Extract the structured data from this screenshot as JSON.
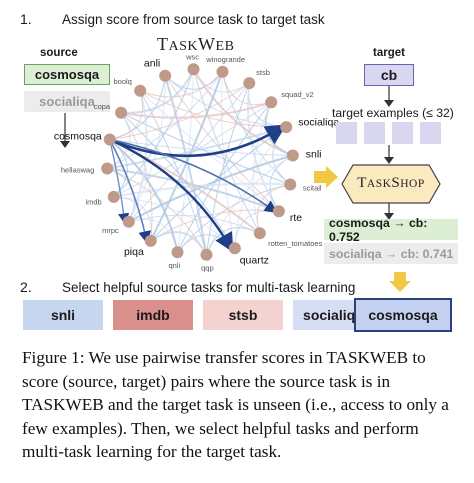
{
  "step1": {
    "num": "1.",
    "text": "Assign score from source task to target task"
  },
  "step2": {
    "num": "2.",
    "text": "Select helpful source tasks for multi-task learning"
  },
  "source": {
    "label": "source",
    "task_primary": "cosmosqa",
    "task_secondary": "socialiqa"
  },
  "taskweb_title": {
    "first": "T",
    "rest": "ASK",
    "first2": "W",
    "rest2": "EB"
  },
  "graph_nodes": [
    "anli",
    "wsc",
    "winogrande",
    "stsb",
    "squad_v2",
    "socialiqa",
    "snli",
    "scitail",
    "rte",
    "rotten_tomatoes",
    "quartz",
    "qqp",
    "qnli",
    "piqa",
    "mrpc",
    "imdb",
    "hellaswag",
    "cosmosqa",
    "copa",
    "boolq"
  ],
  "target": {
    "label": "target",
    "task": "cb",
    "examples_label": "target examples (≤ 32)"
  },
  "taskshop": {
    "first": "T",
    "rest": "ASK",
    "first2": "S",
    "rest2": "HOP"
  },
  "scores": [
    {
      "text": "cosmosqa → cb: 0.752"
    },
    {
      "text": "socialiqa → cb: 0.741"
    }
  ],
  "selected_tasks": [
    "snli",
    "imdb",
    "stsb",
    "socialiqa",
    "cosmosqa"
  ],
  "colors": {
    "green_box": "#dcefd4",
    "green_border": "#6aa35a",
    "purple_box": "#d9d6f0",
    "purple_border": "#6a62b0",
    "taskshop_fill": "#fbeac0",
    "taskshop_border": "#444444",
    "arrow_yellow": "#f2c744",
    "node_brown": "#bf9a8a",
    "edge_blue": "#2e4f8f",
    "snli": "#c7d6ef",
    "imdb": "#d9908c",
    "stsb": "#f3d2d0",
    "socialiqa": "#d6def3",
    "cosmosqa": "#c3d0f0"
  },
  "caption": "Figure 1: We use pairwise transfer scores in TASKWEB to score (source, target) pairs where the source task is in TASKWEB and the target task is unseen (i.e., access to only a few examples). Then, we select helpful tasks and perform multi-task learning for the target task."
}
